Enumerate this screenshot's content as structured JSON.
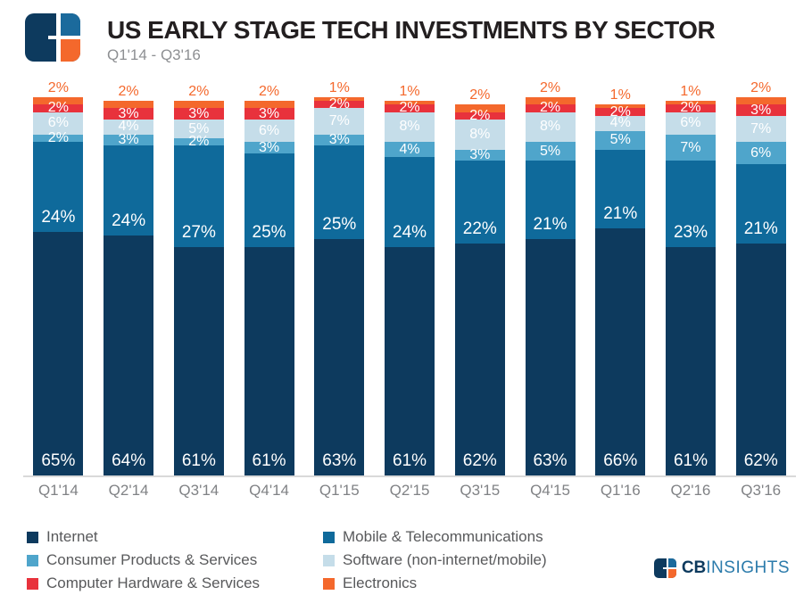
{
  "header": {
    "title": "US EARLY STAGE TECH INVESTMENTS BY SECTOR",
    "subtitle": "Q1'14 - Q3'16"
  },
  "chart_data": {
    "type": "bar",
    "stacked": true,
    "title": "US EARLY STAGE TECH INVESTMENTS BY SECTOR",
    "subtitle": "Q1'14 - Q3'16",
    "value_suffix": "%",
    "ylim": [
      0,
      101
    ],
    "grid": false,
    "legend_position": "bottom-left",
    "baseline_color": "#D9D9D9",
    "categories": [
      "Q1'14",
      "Q2'14",
      "Q3'14",
      "Q4'14",
      "Q1'15",
      "Q2'15",
      "Q3'15",
      "Q4'15",
      "Q1'16",
      "Q2'16",
      "Q3'16"
    ],
    "series": [
      {
        "name": "Internet",
        "color": "#0D3A5E",
        "label_style": "inside-bottom",
        "values": [
          65,
          64,
          61,
          61,
          63,
          61,
          62,
          63,
          66,
          61,
          62
        ]
      },
      {
        "name": "Mobile & Telecommunications",
        "color": "#0F6A9B",
        "label_style": "inside-bottom",
        "values": [
          24,
          24,
          27,
          25,
          25,
          24,
          22,
          21,
          21,
          23,
          21
        ]
      },
      {
        "name": "Consumer Products & Services",
        "color": "#4FA5CB",
        "label_style": "inside-center",
        "values": [
          2,
          3,
          2,
          3,
          3,
          4,
          3,
          5,
          5,
          7,
          6
        ]
      },
      {
        "name": "Software (non-internet/mobile)",
        "color": "#C5DDE9",
        "label_style": "inside-center",
        "values": [
          6,
          4,
          5,
          6,
          7,
          8,
          8,
          8,
          4,
          6,
          7
        ]
      },
      {
        "name": "Computer Hardware & Services",
        "color": "#E8323C",
        "label_style": "inside-center",
        "values": [
          2,
          3,
          3,
          3,
          2,
          2,
          2,
          2,
          2,
          2,
          3
        ]
      },
      {
        "name": "Electronics",
        "color": "#F4682C",
        "label_style": "above",
        "label_color": "#F4682C",
        "values": [
          2,
          2,
          2,
          2,
          1,
          1,
          2,
          2,
          1,
          1,
          2
        ]
      }
    ]
  },
  "brand": {
    "cb": "CB",
    "insights": "INSIGHTS"
  }
}
